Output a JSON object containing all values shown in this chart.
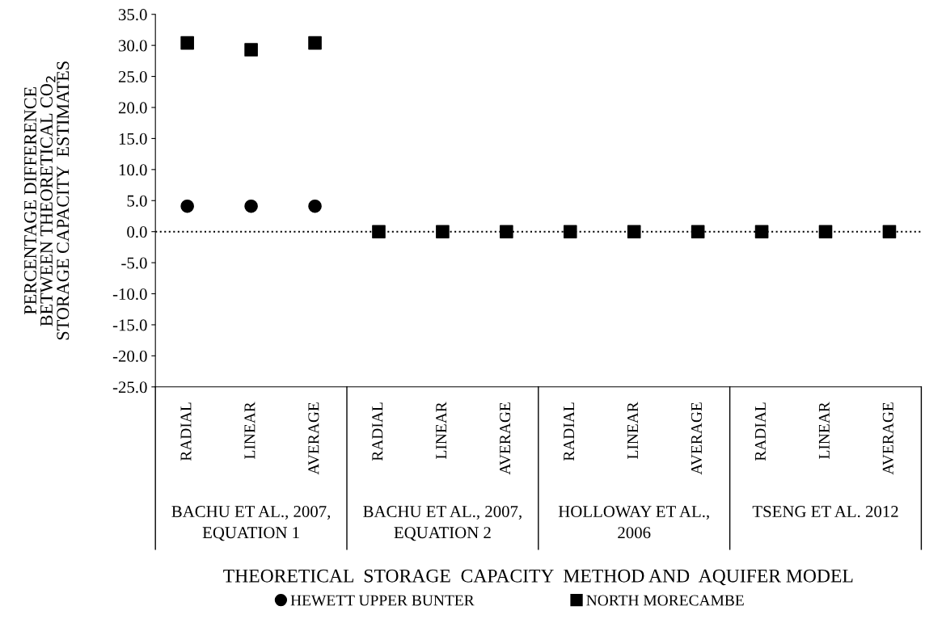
{
  "chart_data": {
    "type": "scatter",
    "xlabel": "THEORETICAL  STORAGE  CAPACITY  METHOD AND  AQUIFER MODEL",
    "ylabel": "PERCENTAGE DIFFERENCE\nBETWEEN THEORETICAL CO$_{2}$\nSTORAGE CAPACITY  ESTIMATES",
    "categories": [
      "RADIAL",
      "LINEAR",
      "AVERAGE",
      "RADIAL",
      "LINEAR",
      "AVERAGE",
      "RADIAL",
      "LINEAR",
      "AVERAGE",
      "RADIAL",
      "LINEAR",
      "AVERAGE"
    ],
    "series": [
      {
        "name": "HEWETT UPPER BUNTER",
        "color": "#000000",
        "marker": "circle",
        "values": [
          4.1,
          4.1,
          4.1,
          null,
          null,
          null,
          null,
          null,
          null,
          null,
          null,
          null
        ]
      },
      {
        "name": "NORTH MORECAMBE",
        "color": "#000000",
        "marker": "square",
        "values": [
          30.4,
          29.3,
          30.4,
          0.0,
          0.0,
          0.0,
          0.0,
          0.0,
          0.0,
          0.0,
          0.0,
          0.0
        ]
      }
    ],
    "annotations": [
      "BACHU ET AL., 2007,\nEQUATION 1",
      "BACHU ET AL., 2007,\nEQUATION 2",
      "HOLLOWAY ET AL.,\n2006",
      "TSENG ET AL. 2012"
    ],
    "ylim": [
      -25,
      35
    ],
    "yticks": [
      {
        "value": -25,
        "label": "-25.0"
      },
      {
        "value": -20,
        "label": "-20.0"
      },
      {
        "value": -15,
        "label": "-15.0"
      },
      {
        "value": -10,
        "label": "-10.0"
      },
      {
        "value": -5,
        "label": "-5.0"
      },
      {
        "value": 0,
        "label": "0.0"
      },
      {
        "value": 5,
        "label": "5.0"
      },
      {
        "value": 10,
        "label": "10.0"
      },
      {
        "value": 15,
        "label": "15.0"
      },
      {
        "value": 20,
        "label": "20.0"
      },
      {
        "value": 25,
        "label": "25.0"
      },
      {
        "value": 30,
        "label": "30.0"
      },
      {
        "value": 35,
        "label": "35.0"
      }
    ],
    "ref_lines": [
      {
        "axis": "y",
        "value": 0,
        "color": "#000000",
        "line_style": "dotted"
      }
    ],
    "grid": false,
    "legend": "bottom"
  }
}
